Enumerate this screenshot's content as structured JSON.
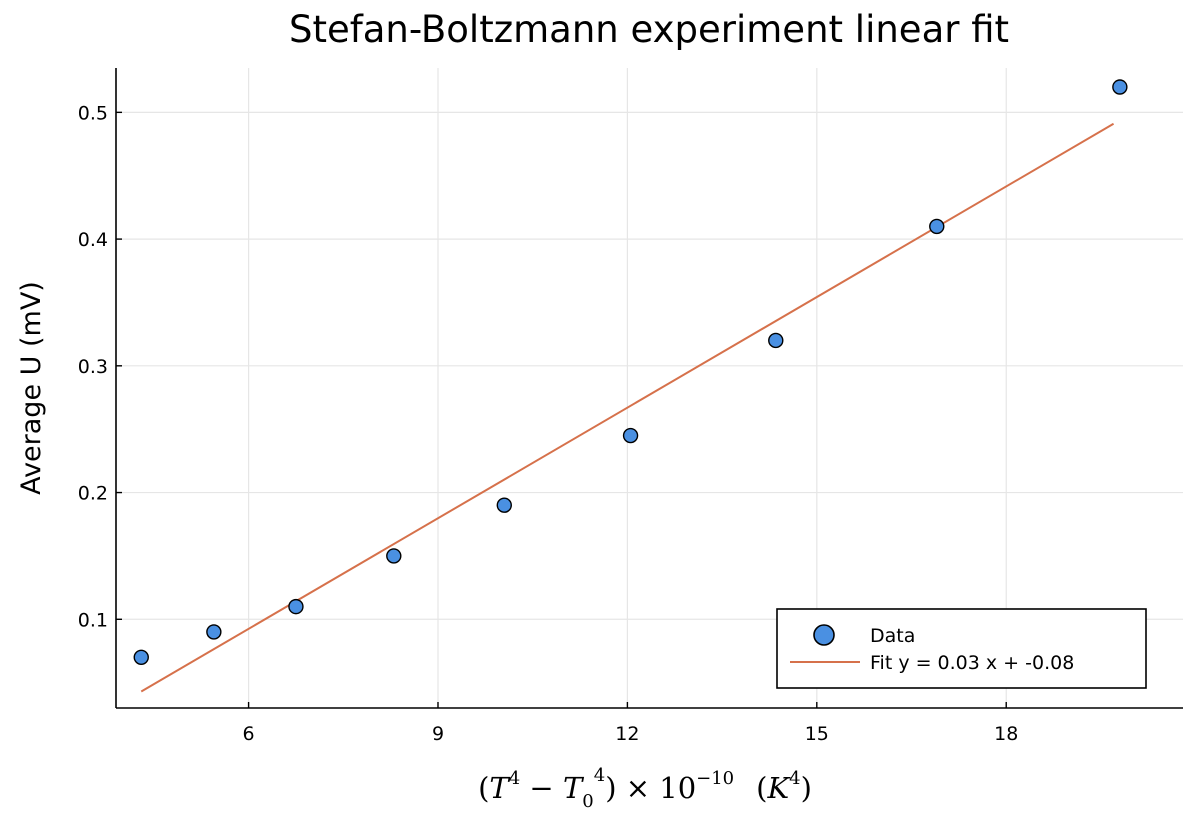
{
  "chart_data": {
    "type": "scatter",
    "title": "Stefan-Boltzmann experiment linear fit",
    "ylabel": "Average U (mV)",
    "xlabel_parts": {
      "open": "(",
      "T": "T",
      "exp1": "4",
      "minus": " − ",
      "T0": "T",
      "sub0": "0",
      "exp2": "4",
      "close": ") × 10",
      "exp3": "−10",
      "unit_open": "(",
      "K": "K",
      "exp4": "4",
      "unit_close": ")"
    },
    "xlim": [
      3.9,
      20.8
    ],
    "ylim": [
      0.03,
      0.535
    ],
    "xticks": [
      6,
      9,
      12,
      15,
      18
    ],
    "yticks": [
      0.1,
      0.2,
      0.3,
      0.4,
      0.5
    ],
    "grid": true,
    "legend_position": "bottom-right",
    "series": [
      {
        "name": "Data",
        "kind": "scatter",
        "color": "#4a90e2",
        "points": [
          {
            "x": 4.3,
            "y": 0.07
          },
          {
            "x": 5.45,
            "y": 0.09
          },
          {
            "x": 6.75,
            "y": 0.11
          },
          {
            "x": 8.3,
            "y": 0.15
          },
          {
            "x": 10.05,
            "y": 0.19
          },
          {
            "x": 12.05,
            "y": 0.245
          },
          {
            "x": 14.35,
            "y": 0.32
          },
          {
            "x": 16.9,
            "y": 0.41
          },
          {
            "x": 19.8,
            "y": 0.52
          }
        ]
      },
      {
        "name": "Fit y = 0.03 x + -0.08",
        "kind": "line",
        "color": "#d6714b",
        "points": [
          {
            "x": 4.3,
            "y": 0.043
          },
          {
            "x": 19.7,
            "y": 0.491
          }
        ]
      }
    ]
  }
}
